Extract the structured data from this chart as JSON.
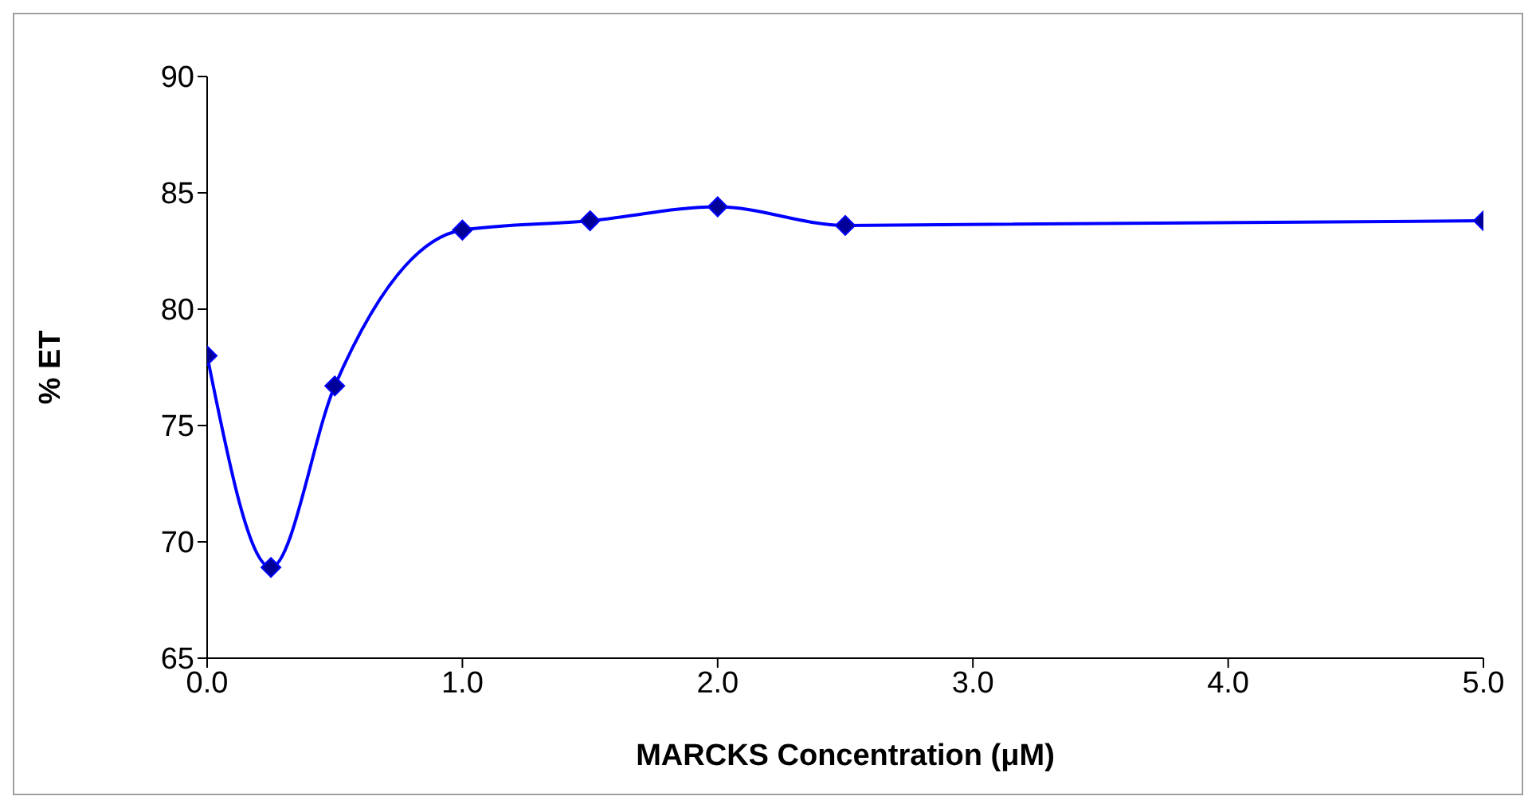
{
  "chart_data": {
    "type": "line",
    "xlabel": "MARCKS Concentration (μM)",
    "ylabel": "% ET",
    "x": [
      0,
      0.25,
      0.5,
      1.0,
      1.5,
      2.0,
      2.5,
      5.0
    ],
    "series": [
      {
        "color": "#0000ff",
        "values": [
          78.0,
          68.9,
          76.7,
          83.4,
          83.8,
          84.4,
          83.6,
          83.8
        ]
      }
    ],
    "xlim": [
      0,
      5
    ],
    "xticks": [
      {
        "value": 0,
        "label": "0.0"
      },
      {
        "value": 1,
        "label": "1.0"
      },
      {
        "value": 2,
        "label": "2.0"
      },
      {
        "value": 3,
        "label": "3.0"
      },
      {
        "value": 4,
        "label": "4.0"
      },
      {
        "value": 5,
        "label": "5.0"
      }
    ],
    "ylim": [
      65,
      90
    ],
    "yticks": [
      65,
      70,
      75,
      80,
      85,
      90
    ],
    "marker": "diamond"
  }
}
